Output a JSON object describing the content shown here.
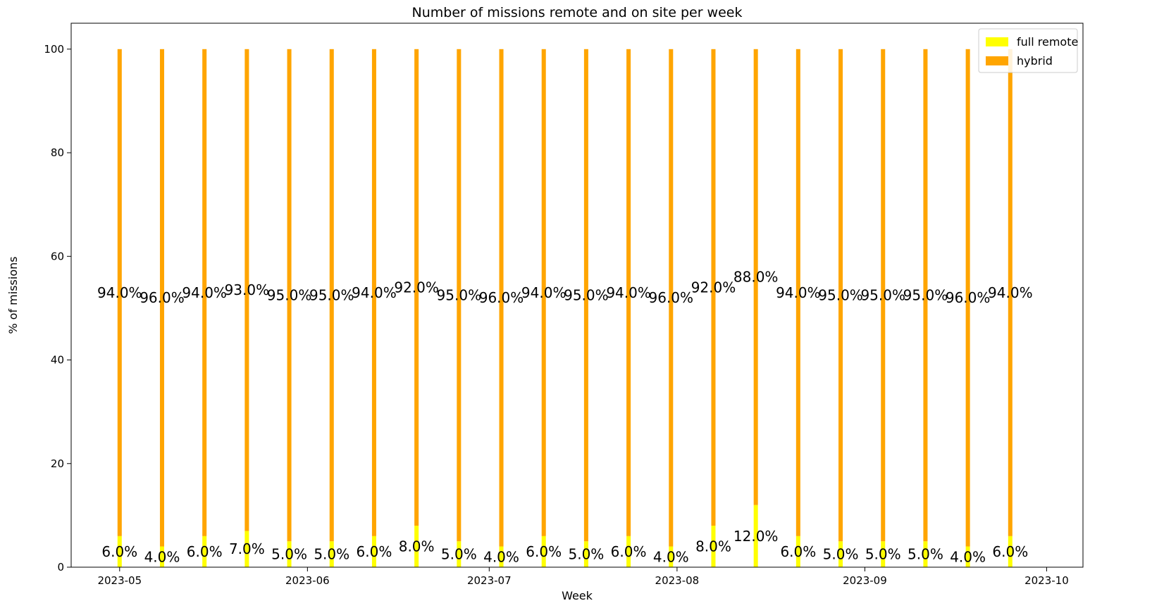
{
  "chart_data": {
    "type": "bar",
    "stacked": true,
    "title": "Number of missions remote and on site per week",
    "xlabel": "Week",
    "ylabel": "% of missions",
    "ylim": [
      0,
      105
    ],
    "xlim": [
      "2023-04-23",
      "2023-10-07"
    ],
    "yticks": [
      0,
      20,
      40,
      60,
      80,
      100
    ],
    "xticks": [
      {
        "date": "2023-05-01",
        "label": "2023-05"
      },
      {
        "date": "2023-06-01",
        "label": "2023-06"
      },
      {
        "date": "2023-07-01",
        "label": "2023-07"
      },
      {
        "date": "2023-08-01",
        "label": "2023-08"
      },
      {
        "date": "2023-09-01",
        "label": "2023-09"
      },
      {
        "date": "2023-10-01",
        "label": "2023-10"
      }
    ],
    "legend_position": "top-right",
    "grid": false,
    "x": [
      "2023-05-01",
      "2023-05-08",
      "2023-05-15",
      "2023-05-22",
      "2023-05-29",
      "2023-06-05",
      "2023-06-12",
      "2023-06-19",
      "2023-06-26",
      "2023-07-03",
      "2023-07-10",
      "2023-07-17",
      "2023-07-24",
      "2023-07-31",
      "2023-08-07",
      "2023-08-14",
      "2023-08-21",
      "2023-08-28",
      "2023-09-04",
      "2023-09-11",
      "2023-09-18",
      "2023-09-25"
    ],
    "series": [
      {
        "name": "full remote",
        "color": "#ffff00",
        "values": [
          6.0,
          4.0,
          6.0,
          7.0,
          5.0,
          5.0,
          6.0,
          8.0,
          5.0,
          4.0,
          6.0,
          5.0,
          6.0,
          4.0,
          8.0,
          12.0,
          6.0,
          5.0,
          5.0,
          5.0,
          4.0,
          6.0
        ],
        "labels": [
          "6.0%",
          "4.0%",
          "6.0%",
          "7.0%",
          "5.0%",
          "5.0%",
          "6.0%",
          "8.0%",
          "5.0%",
          "4.0%",
          "6.0%",
          "5.0%",
          "6.0%",
          "4.0%",
          "8.0%",
          "12.0%",
          "6.0%",
          "5.0%",
          "5.0%",
          "5.0%",
          "4.0%",
          "6.0%"
        ]
      },
      {
        "name": "hybrid",
        "color": "#ffa500",
        "values": [
          94.0,
          96.0,
          94.0,
          93.0,
          95.0,
          95.0,
          94.0,
          92.0,
          95.0,
          96.0,
          94.0,
          95.0,
          94.0,
          96.0,
          92.0,
          88.0,
          94.0,
          95.0,
          95.0,
          95.0,
          96.0,
          94.0
        ],
        "labels": [
          "94.0%",
          "96.0%",
          "94.0%",
          "93.0%",
          "95.0%",
          "95.0%",
          "94.0%",
          "92.0%",
          "95.0%",
          "96.0%",
          "94.0%",
          "95.0%",
          "94.0%",
          "96.0%",
          "92.0%",
          "88.0%",
          "94.0%",
          "95.0%",
          "95.0%",
          "95.0%",
          "96.0%",
          "94.0%"
        ]
      }
    ]
  }
}
